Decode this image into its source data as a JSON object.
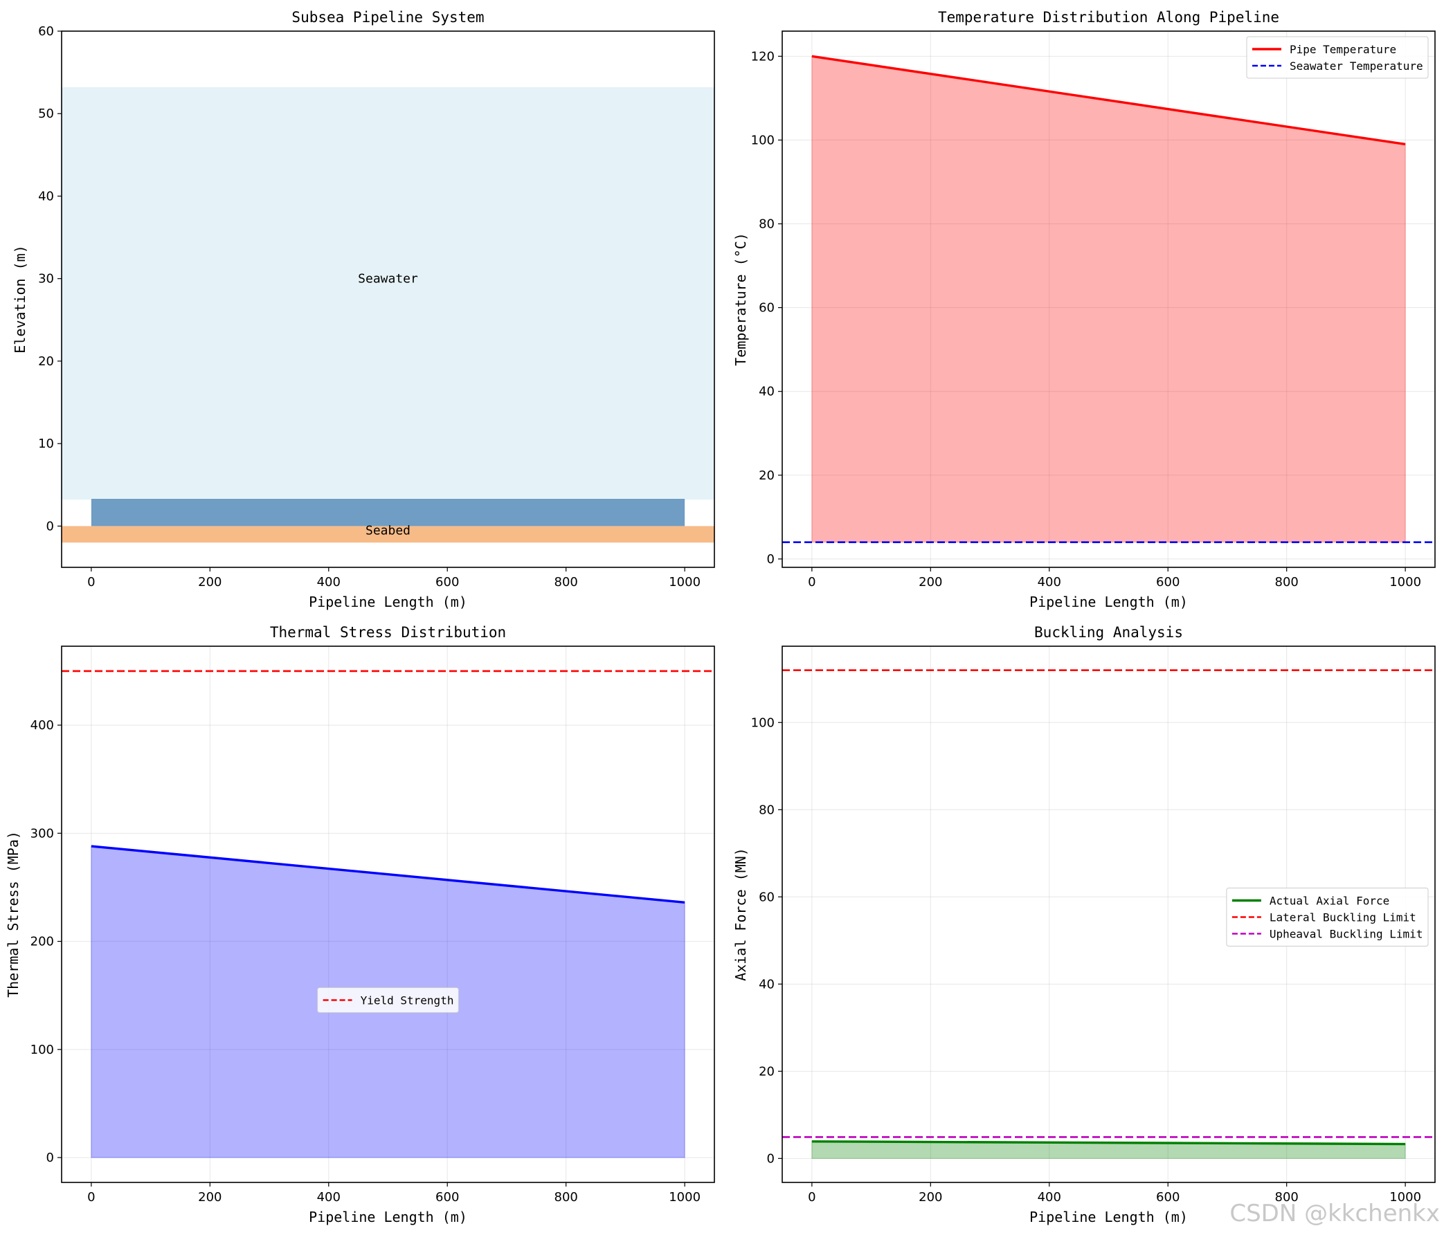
{
  "watermark": "CSDN @kkchenkx",
  "chart_data": [
    {
      "type": "area",
      "title": "Subsea Pipeline System",
      "xlabel": "Pipeline Length (m)",
      "ylabel": "Elevation (m)",
      "xlim": [
        -50,
        1050
      ],
      "ylim": [
        -5,
        60
      ],
      "xticks": [
        0,
        200,
        400,
        600,
        800,
        1000
      ],
      "yticks": [
        0,
        10,
        20,
        30,
        40,
        50,
        60
      ],
      "grid": false,
      "regions": [
        {
          "name": "Seawater",
          "x": [
            -50,
            1050
          ],
          "y": [
            3.2,
            53.2
          ],
          "color": "#add8e6",
          "opacity": 0.32
        },
        {
          "name": "Pipeline",
          "x": [
            0,
            1000
          ],
          "y": [
            0,
            3.3
          ],
          "color": "#4682b4",
          "opacity": 0.78
        },
        {
          "name": "Seabed",
          "x": [
            -50,
            1050
          ],
          "y": [
            -2,
            0
          ],
          "color": "#f4a460",
          "opacity": 0.75
        }
      ],
      "annotations": [
        {
          "text": "Seawater",
          "x": 500,
          "y": 30
        },
        {
          "text": "Seabed",
          "x": 500,
          "y": -0.5
        }
      ]
    },
    {
      "type": "line",
      "title": "Temperature Distribution Along Pipeline",
      "xlabel": "Pipeline Length (m)",
      "ylabel": "Temperature (°C)",
      "xlim": [
        -50,
        1050
      ],
      "ylim": [
        -2,
        126
      ],
      "xticks": [
        0,
        200,
        400,
        600,
        800,
        1000
      ],
      "yticks": [
        0,
        20,
        40,
        60,
        80,
        100,
        120
      ],
      "grid": true,
      "legend_position": "top-right",
      "series": [
        {
          "name": "Pipe Temperature",
          "x": [
            0,
            1000
          ],
          "values": [
            120,
            99
          ],
          "color": "#ff0000",
          "style": "solid",
          "fill_to": 4,
          "fill_color": "#ff0000",
          "fill_opacity": 0.3
        },
        {
          "name": "Seawater Temperature",
          "x": [
            -50,
            1050
          ],
          "values": [
            4,
            4
          ],
          "color": "#0000ff",
          "style": "dashed"
        }
      ]
    },
    {
      "type": "line",
      "title": "Thermal Stress Distribution",
      "xlabel": "Pipeline Length (m)",
      "ylabel": "Thermal Stress (MPa)",
      "xlim": [
        -50,
        1050
      ],
      "ylim": [
        -23,
        473
      ],
      "xticks": [
        0,
        200,
        400,
        600,
        800,
        1000
      ],
      "yticks": [
        0,
        100,
        200,
        300,
        400
      ],
      "grid": true,
      "legend_position": "center",
      "series": [
        {
          "name": "",
          "x": [
            0,
            1000
          ],
          "values": [
            288,
            236
          ],
          "color": "#0000ff",
          "style": "solid",
          "fill_to": 0,
          "fill_color": "#0000ff",
          "fill_opacity": 0.3
        },
        {
          "name": "Yield Strength",
          "x": [
            -50,
            1050
          ],
          "values": [
            450,
            450
          ],
          "color": "#ff0000",
          "style": "dashed"
        }
      ]
    },
    {
      "type": "line",
      "title": "Buckling Analysis",
      "xlabel": "Pipeline Length (m)",
      "ylabel": "Axial Force (MN)",
      "xlim": [
        -50,
        1050
      ],
      "ylim": [
        -5.5,
        117.5
      ],
      "xticks": [
        0,
        200,
        400,
        600,
        800,
        1000
      ],
      "yticks": [
        0,
        20,
        40,
        60,
        80,
        100
      ],
      "grid": true,
      "legend_position": "center-right",
      "series": [
        {
          "name": "Actual Axial Force",
          "x": [
            0,
            1000
          ],
          "values": [
            3.9,
            3.3
          ],
          "color": "#008000",
          "style": "solid",
          "fill_to": 0,
          "fill_color": "#008000",
          "fill_opacity": 0.3
        },
        {
          "name": "Lateral Buckling Limit",
          "x": [
            -50,
            1050
          ],
          "values": [
            112,
            112
          ],
          "color": "#ff0000",
          "style": "dashed"
        },
        {
          "name": "Upheaval Buckling Limit",
          "x": [
            -50,
            1050
          ],
          "values": [
            4.9,
            4.9
          ],
          "color": "#bf00bf",
          "style": "dashed"
        }
      ]
    }
  ]
}
